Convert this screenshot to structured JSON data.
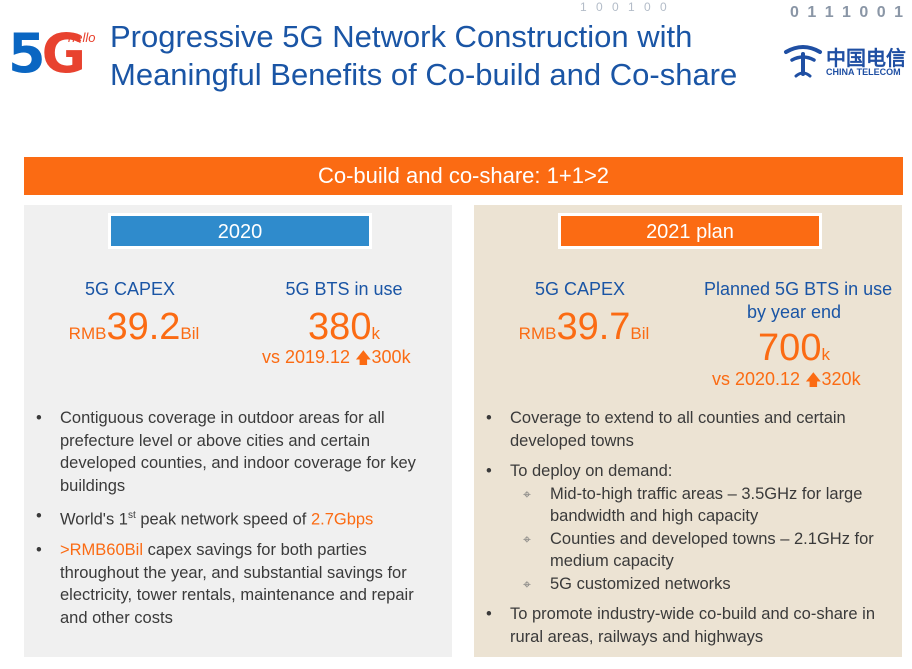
{
  "logo": {
    "five": "5",
    "gee": "G",
    "hello": "hello"
  },
  "title": {
    "line1": "Progressive 5G Network Construction with",
    "line2": "Meaningful Benefits of Co-build and Co-share"
  },
  "decor": {
    "binary_top": "1    0    0 1    0    0",
    "binary_right": "0 1 1 1 0 0 1"
  },
  "brand": {
    "cn": "中国电信",
    "en": "CHINA TELECOM"
  },
  "banner": "Co-build and co-share: 1+1>2",
  "left": {
    "year": "2020",
    "capex_label": "5G CAPEX",
    "capex_prefix": "RMB",
    "capex_value": "39.2",
    "capex_unit": "Bil",
    "bts_label": "5G BTS in use",
    "bts_value": "380",
    "bts_unit": "k",
    "bts_delta_prefix": "vs 2019.12 ",
    "bts_delta_arrow": "🡅",
    "bts_delta_value": "300k",
    "bullets": {
      "b1": "Contiguous coverage in outdoor areas for all prefecture level or above cities and certain developed counties, and indoor coverage for key buildings",
      "b2_pre": "World's 1",
      "b2_sup": "st",
      "b2_mid": " peak network speed of ",
      "b2_hl": "2.7Gbps",
      "b3_hl": ">RMB60Bil",
      "b3_rest": " capex savings for both parties throughout the year, and substantial savings for electricity, tower rentals, maintenance and repair and other costs"
    }
  },
  "right": {
    "year": "2021 plan",
    "capex_label": "5G CAPEX",
    "capex_prefix": "RMB",
    "capex_value": "39.7",
    "capex_unit": "Bil",
    "bts_label1": "Planned 5G BTS in use",
    "bts_label2": "by year end",
    "bts_value": "700",
    "bts_unit": "k",
    "bts_delta_prefix": "vs 2020.12 ",
    "bts_delta_arrow": "🡅",
    "bts_delta_value": "320k",
    "bullets": {
      "b1": "Coverage to extend to all counties and certain developed towns",
      "b2": "To deploy on demand:",
      "sub_mark": "⌖",
      "s1": "Mid-to-high traffic areas – 3.5GHz for large bandwidth and high capacity",
      "s2": "Counties and developed towns – 2.1GHz for medium capacity",
      "s3": "5G customized networks",
      "b3": "To promote industry-wide co-build and co-share in rural areas, railways and highways"
    }
  }
}
